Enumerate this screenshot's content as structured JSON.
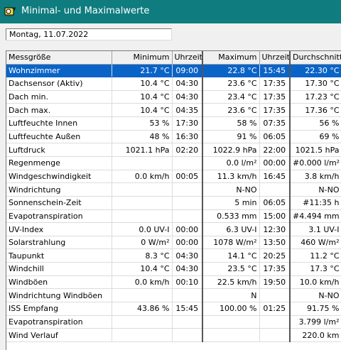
{
  "window": {
    "title": "Minimal- und Maximalwerte",
    "icon": "weather-station-icon"
  },
  "date_field": {
    "value": "Montag, 11.07.2022"
  },
  "table": {
    "headers": [
      "Messgröße",
      "Minimum",
      "Uhrzeit",
      "Maximum",
      "Uhrzeit",
      "Durchschnitt"
    ],
    "selected_row": 0,
    "rows": [
      [
        "Wohnzimmer",
        "21.7 °C",
        "09:00",
        "22.8 °C",
        "15:45",
        "22.30 °C"
      ],
      [
        "Dachsensor (Aktiv)",
        "10.4 °C",
        "04:30",
        "23.6 °C",
        "17:35",
        "17.30 °C"
      ],
      [
        "Dach min.",
        "10.4 °C",
        "04:30",
        "23.4 °C",
        "17:35",
        "17.23 °C"
      ],
      [
        "Dach max.",
        "10.4 °C",
        "04:35",
        "23.6 °C",
        "17:35",
        "17.36 °C"
      ],
      [
        "Luftfeuchte Innen",
        "53 %",
        "17:30",
        "58 %",
        "07:35",
        "56 %"
      ],
      [
        "Luftfeuchte Außen",
        "48 %",
        "16:30",
        "91 %",
        "06:05",
        "69 %"
      ],
      [
        "Luftdruck",
        "1021.1 hPa",
        "02:20",
        "1022.9 hPa",
        "22:00",
        "1021.5 hPa"
      ],
      [
        "Regenmenge",
        "",
        "",
        "0.0 l/m²",
        "00:00",
        "#0.000 l/m²"
      ],
      [
        "Windgeschwindigkeit",
        "0.0 km/h",
        "00:05",
        "11.3 km/h",
        "16:45",
        "3.8 km/h"
      ],
      [
        "Windrichtung",
        "",
        "",
        "N-NO",
        "",
        "N-NO"
      ],
      [
        "Sonnenschein-Zeit",
        "",
        "",
        "5 min",
        "06:05",
        "#11:35 h"
      ],
      [
        "Evapotranspiration",
        "",
        "",
        "0.533 mm",
        "15:00",
        "#4.494 mm"
      ],
      [
        "UV-Index",
        "0.0 UV-I",
        "00:00",
        "6.3 UV-I",
        "12:30",
        "3.1 UV-I"
      ],
      [
        "Solarstrahlung",
        "0 W/m²",
        "00:00",
        "1078 W/m²",
        "13:50",
        "460 W/m²"
      ],
      [
        "Taupunkt",
        "8.3 °C",
        "04:30",
        "14.1 °C",
        "20:25",
        "11.2 °C"
      ],
      [
        "Windchill",
        "10.4 °C",
        "04:30",
        "23.5 °C",
        "17:35",
        "17.3 °C"
      ],
      [
        "Windböen",
        "0.0 km/h",
        "00:10",
        "22.5 km/h",
        "19:50",
        "10.0 km/h"
      ],
      [
        "Windrichtung Windböen",
        "",
        "",
        "N",
        "",
        "N-NO"
      ],
      [
        "ISS Empfang",
        "43.86 %",
        "15:45",
        "100.00 %",
        "01:25",
        "91.75 %"
      ],
      [
        "Evapotranspiration",
        "",
        "",
        "",
        "",
        "3.799 l/m²"
      ],
      [
        "Wind Verlauf",
        "",
        "",
        "",
        "",
        "220.0 km"
      ]
    ]
  },
  "colors": {
    "titlebar": "#0f7c7f",
    "selection": "#0a64c8"
  }
}
